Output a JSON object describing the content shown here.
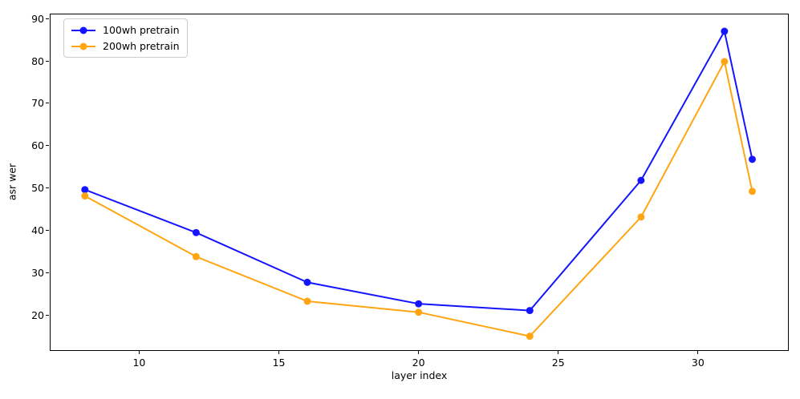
{
  "chart_data": {
    "type": "line",
    "title": "",
    "xlabel": "layer index",
    "ylabel": "asr wer",
    "x": [
      8,
      12,
      16,
      20,
      24,
      28,
      31,
      32
    ],
    "series": [
      {
        "name": "100wh pretrain",
        "color": "#1414ff",
        "values": [
          49.6,
          39.4,
          27.6,
          22.5,
          20.9,
          51.8,
          87.2,
          56.8
        ]
      },
      {
        "name": "200wh pretrain",
        "color": "#ffa512",
        "values": [
          48.1,
          33.7,
          23.1,
          20.5,
          14.8,
          43.1,
          80.0,
          49.2
        ]
      }
    ],
    "xlim": [
      6.8,
      33.25
    ],
    "ylim": [
      11.5,
      91.2
    ],
    "xticks": [
      10,
      15,
      20,
      25,
      30
    ],
    "yticks": [
      20,
      30,
      40,
      50,
      60,
      70,
      80,
      90
    ],
    "grid": false,
    "legend_position": "upper left",
    "marker": "o",
    "line_width": 2,
    "marker_radius": 4.5
  }
}
